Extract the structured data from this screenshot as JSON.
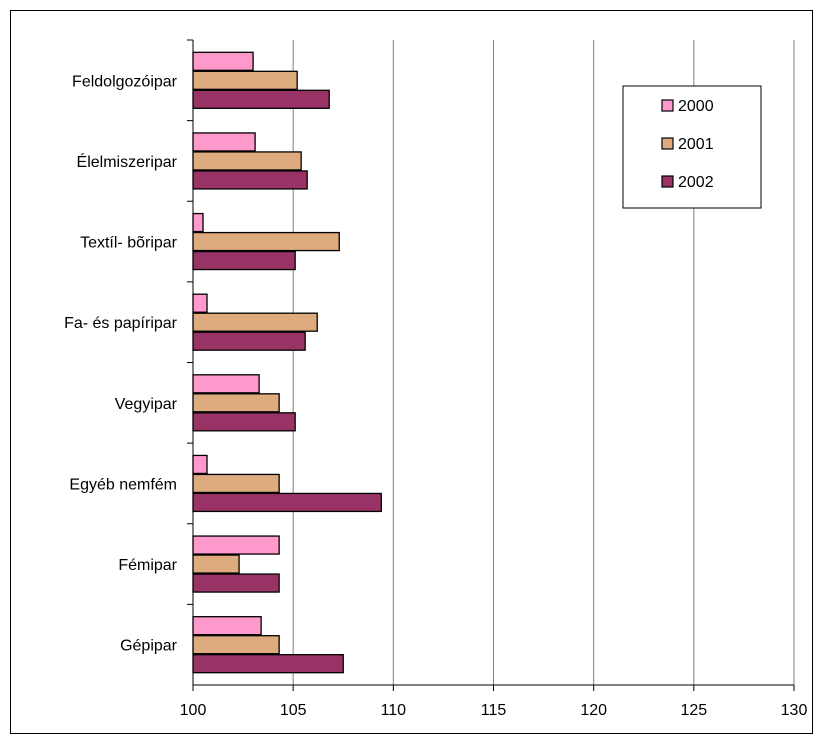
{
  "chart_data": {
    "type": "bar",
    "orientation": "horizontal",
    "categories": [
      "Feldolgozóipar",
      "Élelmiszeripar",
      "Textíl- bõripar",
      "Fa- és papíripar",
      "Vegyipar",
      "Egyéb nemfém",
      "Fémipar",
      "Gépipar"
    ],
    "series": [
      {
        "name": "2000",
        "color": "#FF99CC",
        "values": [
          103.0,
          103.1,
          100.5,
          100.7,
          103.3,
          100.7,
          104.3,
          103.4
        ]
      },
      {
        "name": "2001",
        "color": "#DEAB7F",
        "values": [
          105.2,
          105.4,
          107.3,
          106.2,
          104.3,
          104.3,
          102.3,
          104.3
        ]
      },
      {
        "name": "2002",
        "color": "#993366",
        "values": [
          106.8,
          105.7,
          105.1,
          105.6,
          105.1,
          109.4,
          104.3,
          107.5
        ]
      }
    ],
    "xlim": [
      100,
      130
    ],
    "xticks": [
      "100",
      "105",
      "110",
      "115",
      "120",
      "125",
      "130"
    ],
    "grid": "vertical",
    "legend": "top-right"
  }
}
